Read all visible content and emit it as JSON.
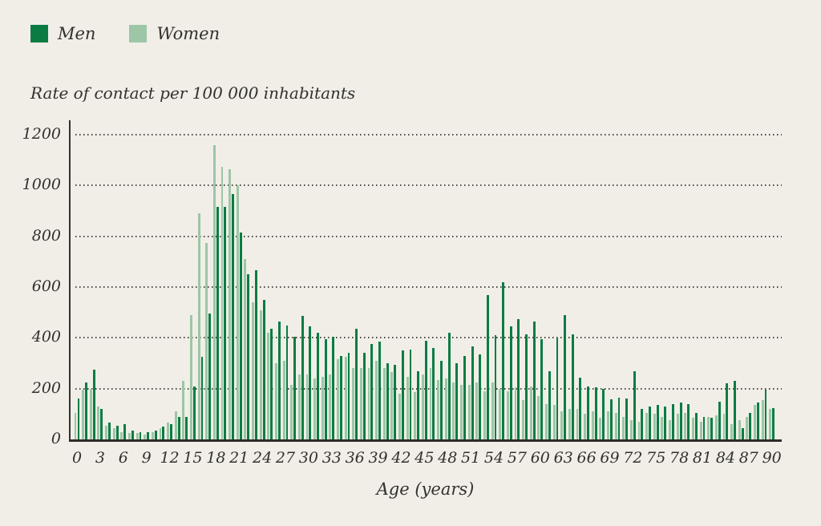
{
  "legend": {
    "items": [
      {
        "label": "Men",
        "color": "#0a7c43"
      },
      {
        "label": "Women",
        "color": "#9cc6a5"
      }
    ]
  },
  "title": "Rate of contact per 100 000 inhabitants",
  "x_axis_label": "Age (years)",
  "colors": {
    "background": "#f1eee8",
    "axis": "#33312d",
    "grid_dots": "#4a4844",
    "text": "#33312d",
    "men": "#0a7c43",
    "women": "#9cc6a5"
  },
  "chart_data": {
    "type": "bar",
    "title": "Rate of contact per 100 000 inhabitants",
    "xlabel": "Age (years)",
    "ylabel": "Rate of contact per 100 000 inhabitants",
    "ylim": [
      0,
      1200
    ],
    "yticks": [
      0,
      200,
      400,
      600,
      800,
      1000,
      1200
    ],
    "xticks": [
      0,
      3,
      6,
      9,
      12,
      15,
      18,
      21,
      24,
      27,
      30,
      33,
      36,
      39,
      42,
      45,
      48,
      51,
      54,
      57,
      60,
      63,
      66,
      69,
      72,
      75,
      78,
      81,
      84,
      87,
      90
    ],
    "grid": "horizontal-dotted",
    "legend_position": "top-left",
    "bar_order_in_pair": [
      "Women",
      "Men"
    ],
    "x": [
      0,
      1,
      2,
      3,
      4,
      5,
      6,
      7,
      8,
      9,
      10,
      11,
      12,
      13,
      14,
      15,
      16,
      17,
      18,
      19,
      20,
      21,
      22,
      23,
      24,
      25,
      26,
      27,
      28,
      29,
      30,
      31,
      32,
      33,
      34,
      35,
      36,
      37,
      38,
      39,
      40,
      41,
      42,
      43,
      44,
      45,
      46,
      47,
      48,
      49,
      50,
      51,
      52,
      53,
      54,
      55,
      56,
      57,
      58,
      59,
      60,
      61,
      62,
      63,
      64,
      65,
      66,
      67,
      68,
      69,
      70,
      71,
      72,
      73,
      74,
      75,
      76,
      77,
      78,
      79,
      80,
      81,
      82,
      83,
      84,
      85,
      86,
      87,
      88,
      89,
      90
    ],
    "series": [
      {
        "name": "Men",
        "color": "#0a7c43",
        "values": [
          160,
          225,
          275,
          120,
          65,
          55,
          60,
          35,
          30,
          30,
          35,
          50,
          60,
          90,
          88,
          210,
          325,
          495,
          915,
          915,
          965,
          815,
          650,
          665,
          550,
          435,
          465,
          450,
          405,
          485,
          445,
          420,
          395,
          405,
          330,
          340,
          435,
          340,
          375,
          385,
          300,
          295,
          350,
          355,
          270,
          390,
          360,
          310,
          420,
          300,
          330,
          365,
          335,
          570,
          410,
          620,
          445,
          475,
          415,
          465,
          395,
          270,
          400,
          490,
          415,
          242,
          210,
          205,
          200,
          157,
          165,
          160,
          270,
          120,
          130,
          135,
          130,
          140,
          145,
          140,
          105,
          90,
          85,
          150,
          222,
          232,
          45,
          105,
          145,
          195,
          122
        ]
      },
      {
        "name": "Women",
        "color": "#9cc6a5",
        "values": [
          105,
          195,
          200,
          130,
          55,
          45,
          30,
          25,
          25,
          20,
          30,
          45,
          65,
          110,
          230,
          490,
          890,
          775,
          1160,
          1075,
          1065,
          1000,
          710,
          540,
          510,
          420,
          300,
          310,
          215,
          257,
          255,
          240,
          245,
          255,
          315,
          325,
          280,
          280,
          280,
          310,
          280,
          265,
          180,
          245,
          185,
          255,
          280,
          235,
          240,
          225,
          215,
          215,
          225,
          190,
          225,
          200,
          190,
          205,
          155,
          210,
          170,
          140,
          135,
          110,
          120,
          120,
          100,
          110,
          85,
          110,
          105,
          90,
          75,
          70,
          105,
          100,
          90,
          75,
          100,
          105,
          85,
          70,
          90,
          95,
          100,
          60,
          75,
          87,
          135,
          155,
          120
        ]
      }
    ]
  }
}
